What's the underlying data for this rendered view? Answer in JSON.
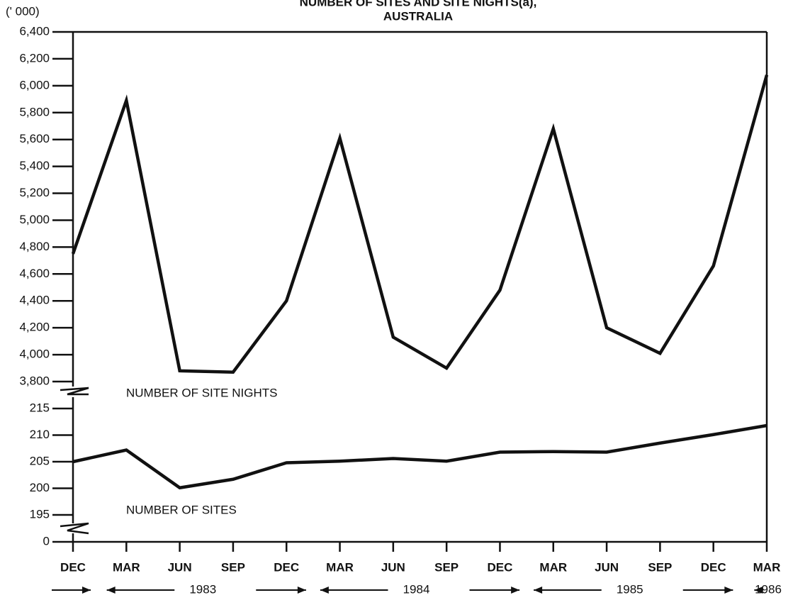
{
  "title": "NUMBER OF SITES AND SITE NIGHTS(a),",
  "subtitle": "AUSTRALIA",
  "unit_label": "(' 000)",
  "chart_data": [
    {
      "type": "line",
      "series": [
        {
          "name": "NUMBER OF SITE NIGHTS",
          "color": "#111111",
          "values": [
            4750,
            5890,
            3880,
            3870,
            4400,
            5610,
            4130,
            3900,
            4480,
            5680,
            4200,
            4010,
            4660,
            6080
          ]
        }
      ],
      "ylim": [
        3800,
        6400
      ],
      "yticks": [
        {
          "value": 3800,
          "label": "3,800"
        },
        {
          "value": 4000,
          "label": "4,000"
        },
        {
          "value": 4200,
          "label": "4,200"
        },
        {
          "value": 4400,
          "label": "4,400"
        },
        {
          "value": 4600,
          "label": "4,600"
        },
        {
          "value": 4800,
          "label": "4,800"
        },
        {
          "value": 5000,
          "label": "5,000"
        },
        {
          "value": 5200,
          "label": "5,200"
        },
        {
          "value": 5400,
          "label": "5,400"
        },
        {
          "value": 5600,
          "label": "5,600"
        },
        {
          "value": 5800,
          "label": "5,800"
        },
        {
          "value": 6000,
          "label": "6,000"
        },
        {
          "value": 6200,
          "label": "6,200"
        },
        {
          "value": 6400,
          "label": "6,400"
        }
      ]
    },
    {
      "type": "line",
      "categories": [
        "DEC",
        "MAR",
        "JUN",
        "SEP",
        "DEC",
        "MAR",
        "JUN",
        "SEP",
        "DEC",
        "MAR",
        "JUN",
        "SEP",
        "DEC",
        "MAR"
      ],
      "periods": [
        "1983",
        "1984",
        "1985",
        "1986"
      ],
      "series": [
        {
          "name": "NUMBER OF SITES",
          "color": "#111111",
          "values": [
            205,
            207.2,
            200.1,
            201.7,
            204.8,
            205.1,
            205.6,
            205.1,
            206.8,
            206.9,
            206.8,
            208.5,
            210.1,
            211.8
          ]
        }
      ],
      "ylim": [
        195,
        215
      ],
      "yticks": [
        195,
        200,
        205,
        210,
        215
      ],
      "origin_tick": 0
    }
  ]
}
